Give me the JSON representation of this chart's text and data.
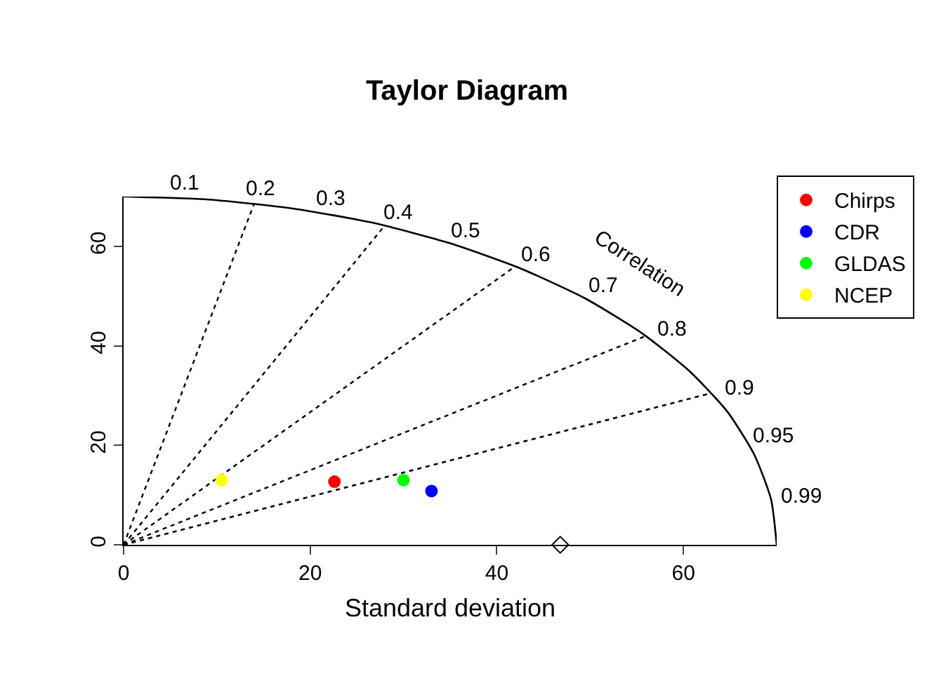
{
  "chart_data": {
    "type": "scatter",
    "title": "Taylor Diagram",
    "xlabel": "Standard deviation",
    "xlim": [
      0,
      70
    ],
    "xticks": [
      0,
      20,
      40,
      60
    ],
    "ylim": [
      0,
      70
    ],
    "yticks": [
      0,
      20,
      40,
      60
    ],
    "grid": false,
    "legend": "top right",
    "marker": "circle",
    "series": [
      {
        "type": "line",
        "color": "#000000",
        "line_style": "solid",
        "marker": "none",
        "x": [
          70,
          69.4,
          67.6,
          64.7,
          60.6,
          55.5,
          49.5,
          42.6,
          35,
          26.8,
          18.1,
          9.1,
          0
        ],
        "values": [
          0,
          9.1,
          18.1,
          26.8,
          35,
          42.6,
          49.5,
          55.5,
          60.6,
          64.7,
          67.6,
          69.4,
          70
        ]
      },
      {
        "type": "line",
        "color": "#000000",
        "line_style": "dotted",
        "marker": "none",
        "x": [
          0,
          14
        ],
        "values": [
          0,
          68.6
        ]
      },
      {
        "type": "line",
        "color": "#000000",
        "line_style": "dotted",
        "marker": "none",
        "x": [
          0,
          28
        ],
        "values": [
          0,
          64.2
        ]
      },
      {
        "type": "line",
        "color": "#000000",
        "line_style": "dotted",
        "marker": "none",
        "x": [
          0,
          42
        ],
        "values": [
          0,
          56
        ]
      },
      {
        "type": "line",
        "color": "#000000",
        "line_style": "dotted",
        "marker": "none",
        "x": [
          0,
          56
        ],
        "values": [
          0,
          42
        ]
      },
      {
        "type": "line",
        "color": "#000000",
        "line_style": "dotted",
        "marker": "none",
        "x": [
          0,
          63
        ],
        "values": [
          0,
          30.5
        ]
      },
      {
        "color": "#000000",
        "marker": "diamond",
        "x": [
          46.8
        ],
        "values": [
          0
        ]
      },
      {
        "name": "Chirps",
        "color": "#ff0000",
        "x": [
          22.6
        ],
        "values": [
          12.7
        ]
      },
      {
        "name": "CDR",
        "color": "#0000ff",
        "x": [
          33.0
        ],
        "values": [
          10.8
        ]
      },
      {
        "name": "GLDAS",
        "color": "#00ff00",
        "x": [
          30.0
        ],
        "values": [
          13.0
        ]
      },
      {
        "name": "NCEP",
        "color": "#ffff00",
        "x": [
          10.5
        ],
        "values": [
          13.0
        ]
      }
    ],
    "annotations": [
      "0.1",
      "0.2",
      "0.3",
      "0.4",
      "0.5",
      "0.6",
      "0.7",
      "0.8",
      "0.9",
      "0.95",
      "0.99",
      "Correlation"
    ]
  }
}
